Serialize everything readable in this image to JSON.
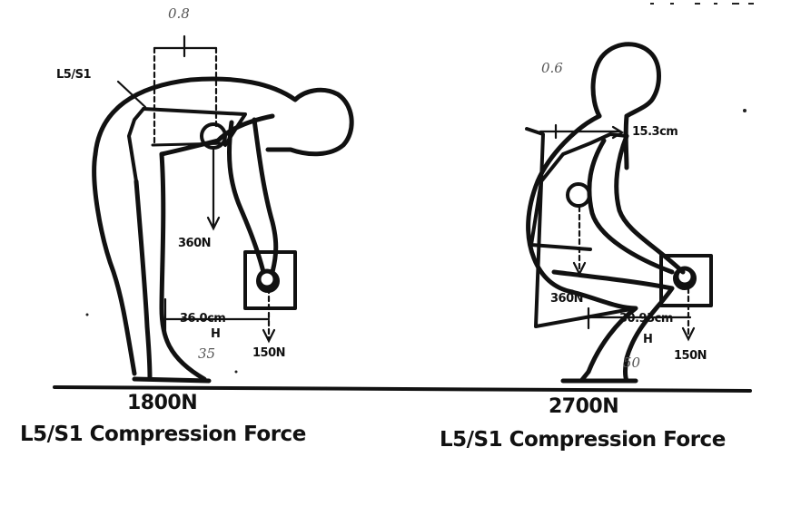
{
  "left": {
    "posture": "stoop",
    "handwritten_top": "0.8",
    "joint_label": "L5/S1",
    "body_weight": "360N",
    "horizontal_distance": "36.0cm",
    "h_label": "H",
    "handwritten_distance": "35",
    "load_weight": "150N",
    "compression_value": "1800N",
    "caption": "L5/S1 Compression Force"
  },
  "right": {
    "posture": "squat",
    "handwritten_top": "0.6",
    "offset_label": "15.3cm",
    "body_weight": "360N",
    "horizontal_distance": "30.95cm",
    "h_label": "H",
    "handwritten_distance": "50",
    "load_weight": "150N",
    "compression_value": "2700N",
    "caption": "L5/S1 Compression Force"
  },
  "colors": {
    "ink": "#111111",
    "pencil": "#555555",
    "paper": "#ffffff"
  }
}
